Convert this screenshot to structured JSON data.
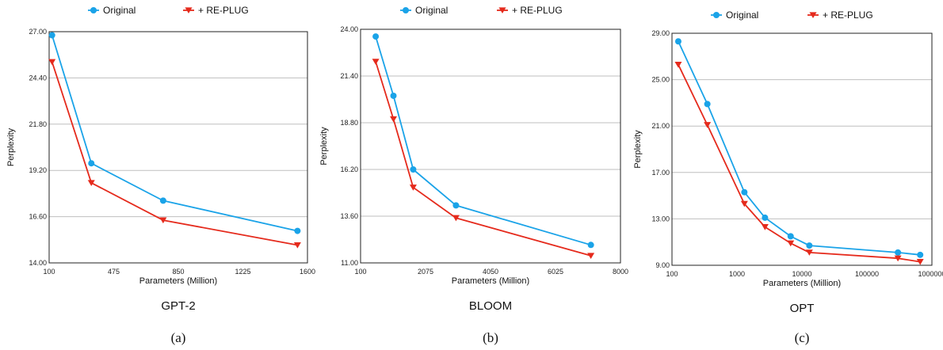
{
  "legend": {
    "original": "Original",
    "replug": "+ RE-PLUG"
  },
  "colors": {
    "original": "#1aa3e8",
    "replug": "#e52a1c",
    "grid": "#bfbfbf",
    "frame": "#222222"
  },
  "chart_data": [
    {
      "type": "line",
      "title": "GPT-2",
      "caption": "(a)",
      "xlabel": "Parameters (Million)",
      "ylabel": "Perplexity",
      "xscale": "linear",
      "xlim": [
        100,
        1600
      ],
      "ylim": [
        14.0,
        27.0
      ],
      "xticks": [
        "100",
        "475",
        "850",
        "1225",
        "1600"
      ],
      "yticks": [
        "14.00",
        "16.60",
        "19.20",
        "21.80",
        "24.40",
        "27.00"
      ],
      "grid": "horizontal",
      "legend_position": "top",
      "series": [
        {
          "name": "Original",
          "x": [
            117,
            345,
            762,
            1542
          ],
          "y": [
            26.8,
            19.6,
            17.5,
            15.8
          ]
        },
        {
          "name": "+ RE-PLUG",
          "x": [
            117,
            345,
            762,
            1542
          ],
          "y": [
            25.3,
            18.5,
            16.4,
            15.0
          ]
        }
      ]
    },
    {
      "type": "line",
      "title": "BLOOM",
      "caption": "(b)",
      "xlabel": "Parameters (Million)",
      "ylabel": "Perplexity",
      "xscale": "linear",
      "xlim": [
        100,
        8000
      ],
      "ylim": [
        11.0,
        24.0
      ],
      "xticks": [
        "100",
        "2075",
        "4050",
        "6025",
        "8000"
      ],
      "yticks": [
        "11.00",
        "13.60",
        "16.20",
        "18.80",
        "21.40",
        "24.00"
      ],
      "grid": "horizontal",
      "legend_position": "top",
      "series": [
        {
          "name": "Original",
          "x": [
            560,
            1100,
            1700,
            3000,
            7100
          ],
          "y": [
            23.6,
            20.3,
            16.2,
            14.2,
            12.0
          ]
        },
        {
          "name": "+ RE-PLUG",
          "x": [
            560,
            1100,
            1700,
            3000,
            7100
          ],
          "y": [
            22.2,
            19.0,
            15.2,
            13.5,
            11.4
          ]
        }
      ]
    },
    {
      "type": "line",
      "title": "OPT",
      "caption": "(c)",
      "xlabel": "Parameters (Million)",
      "ylabel": "Perplexity",
      "xscale": "log",
      "xlim": [
        100,
        1000000
      ],
      "ylim": [
        9.0,
        29.0
      ],
      "xticks": [
        "100",
        "1000",
        "10000",
        "100000",
        "1000000"
      ],
      "yticks": [
        "9.00",
        "13.00",
        "17.00",
        "21.00",
        "25.00",
        "29.00"
      ],
      "grid": "horizontal",
      "legend_position": "top",
      "series": [
        {
          "name": "Original",
          "x": [
            125,
            350,
            1300,
            2700,
            6700,
            13000,
            300000,
            660000
          ],
          "y": [
            28.3,
            22.9,
            15.3,
            13.1,
            11.5,
            10.7,
            10.1,
            9.9
          ]
        },
        {
          "name": "+ RE-PLUG",
          "x": [
            125,
            350,
            1300,
            2700,
            6700,
            13000,
            300000,
            660000
          ],
          "y": [
            26.3,
            21.1,
            14.3,
            12.3,
            10.9,
            10.1,
            9.6,
            9.3
          ]
        }
      ]
    }
  ]
}
